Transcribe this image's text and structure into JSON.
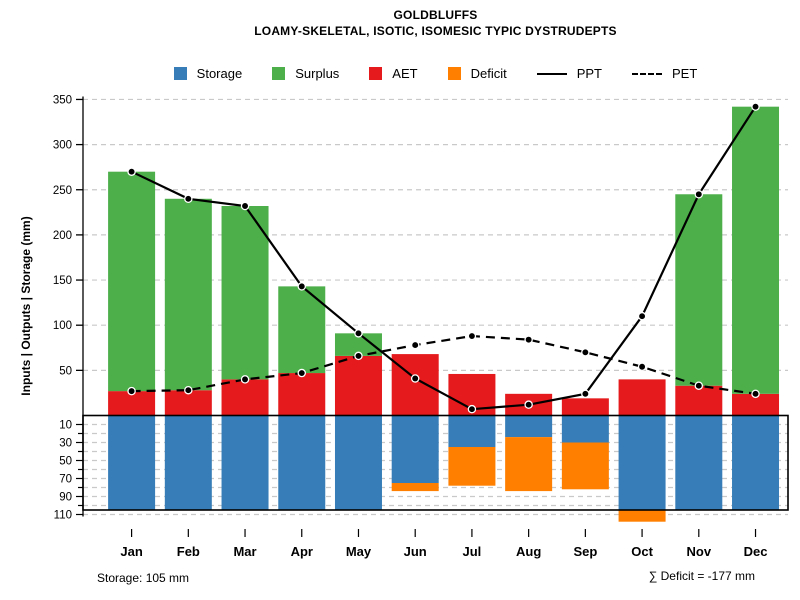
{
  "header": {
    "title": "GOLDBLUFFS",
    "subtitle": "LOAMY-SKELETAL, ISOTIC, ISOMESIC TYPIC DYSTRUDEPTS"
  },
  "legend": {
    "items": [
      {
        "label": "Storage",
        "type": "swatch",
        "color": "#377EB8"
      },
      {
        "label": "Surplus",
        "type": "swatch",
        "color": "#4DAF4A"
      },
      {
        "label": "AET",
        "type": "swatch",
        "color": "#E41A1C"
      },
      {
        "label": "Deficit",
        "type": "swatch",
        "color": "#FF7F00"
      },
      {
        "label": "PPT",
        "type": "solid-line",
        "color": "#000000"
      },
      {
        "label": "PET",
        "type": "dashed-line",
        "color": "#000000"
      }
    ]
  },
  "footer": {
    "storage_note": "Storage: 105 mm",
    "deficit_note": "∑ Deficit = -177 mm"
  },
  "chart_data": {
    "type": "bar",
    "title": "GOLDBLUFFS",
    "subtitle": "LOAMY-SKELETAL, ISOTIC, ISOMESIC TYPIC DYSTRUDEPTS",
    "ylabel": "Inputs | Outputs | Storage   (mm)",
    "xlabel": "",
    "categories": [
      "Jan",
      "Feb",
      "Mar",
      "Apr",
      "May",
      "Jun",
      "Jul",
      "Aug",
      "Sep",
      "Oct",
      "Nov",
      "Dec"
    ],
    "series": [
      {
        "name": "PPT",
        "type": "line",
        "style": "solid",
        "color": "#000000",
        "values": [
          270,
          240,
          232,
          143,
          91,
          41,
          7,
          12,
          24,
          110,
          245,
          342
        ]
      },
      {
        "name": "PET",
        "type": "line",
        "style": "dashed",
        "color": "#000000",
        "values": [
          27,
          28,
          40,
          47,
          66,
          78,
          88,
          84,
          70,
          54,
          33,
          24
        ]
      },
      {
        "name": "AET",
        "type": "bar-up",
        "color": "#E41A1C",
        "values": [
          27,
          28,
          40,
          47,
          66,
          68,
          46,
          24,
          19,
          40,
          33,
          24
        ]
      },
      {
        "name": "Surplus",
        "type": "bar-up-stacked",
        "color": "#4DAF4A",
        "values": [
          243,
          212,
          192,
          96,
          25,
          0,
          0,
          0,
          0,
          0,
          212,
          318
        ]
      },
      {
        "name": "Storage",
        "type": "bar-down",
        "color": "#377EB8",
        "values": [
          105,
          105,
          105,
          105,
          105,
          75,
          35,
          24,
          30,
          105,
          105,
          105
        ]
      },
      {
        "name": "Deficit",
        "type": "bar-down-stacked",
        "color": "#FF7F00",
        "values": [
          0,
          0,
          0,
          0,
          0,
          9,
          43,
          60,
          52,
          13,
          0,
          0
        ]
      }
    ],
    "y_axis_upper": {
      "ticks": [
        50,
        100,
        150,
        200,
        250,
        300,
        350
      ],
      "max": 350,
      "units": "mm"
    },
    "y_axis_lower": {
      "tick_labels": [
        10,
        30,
        50,
        70,
        90,
        110
      ],
      "minor_step": 10,
      "max": 110,
      "capacity": 105,
      "units": "mm"
    },
    "grid": true,
    "legend_position": "top",
    "annotations": {
      "total_storage_mm": 105,
      "total_deficit_mm": -177
    }
  }
}
